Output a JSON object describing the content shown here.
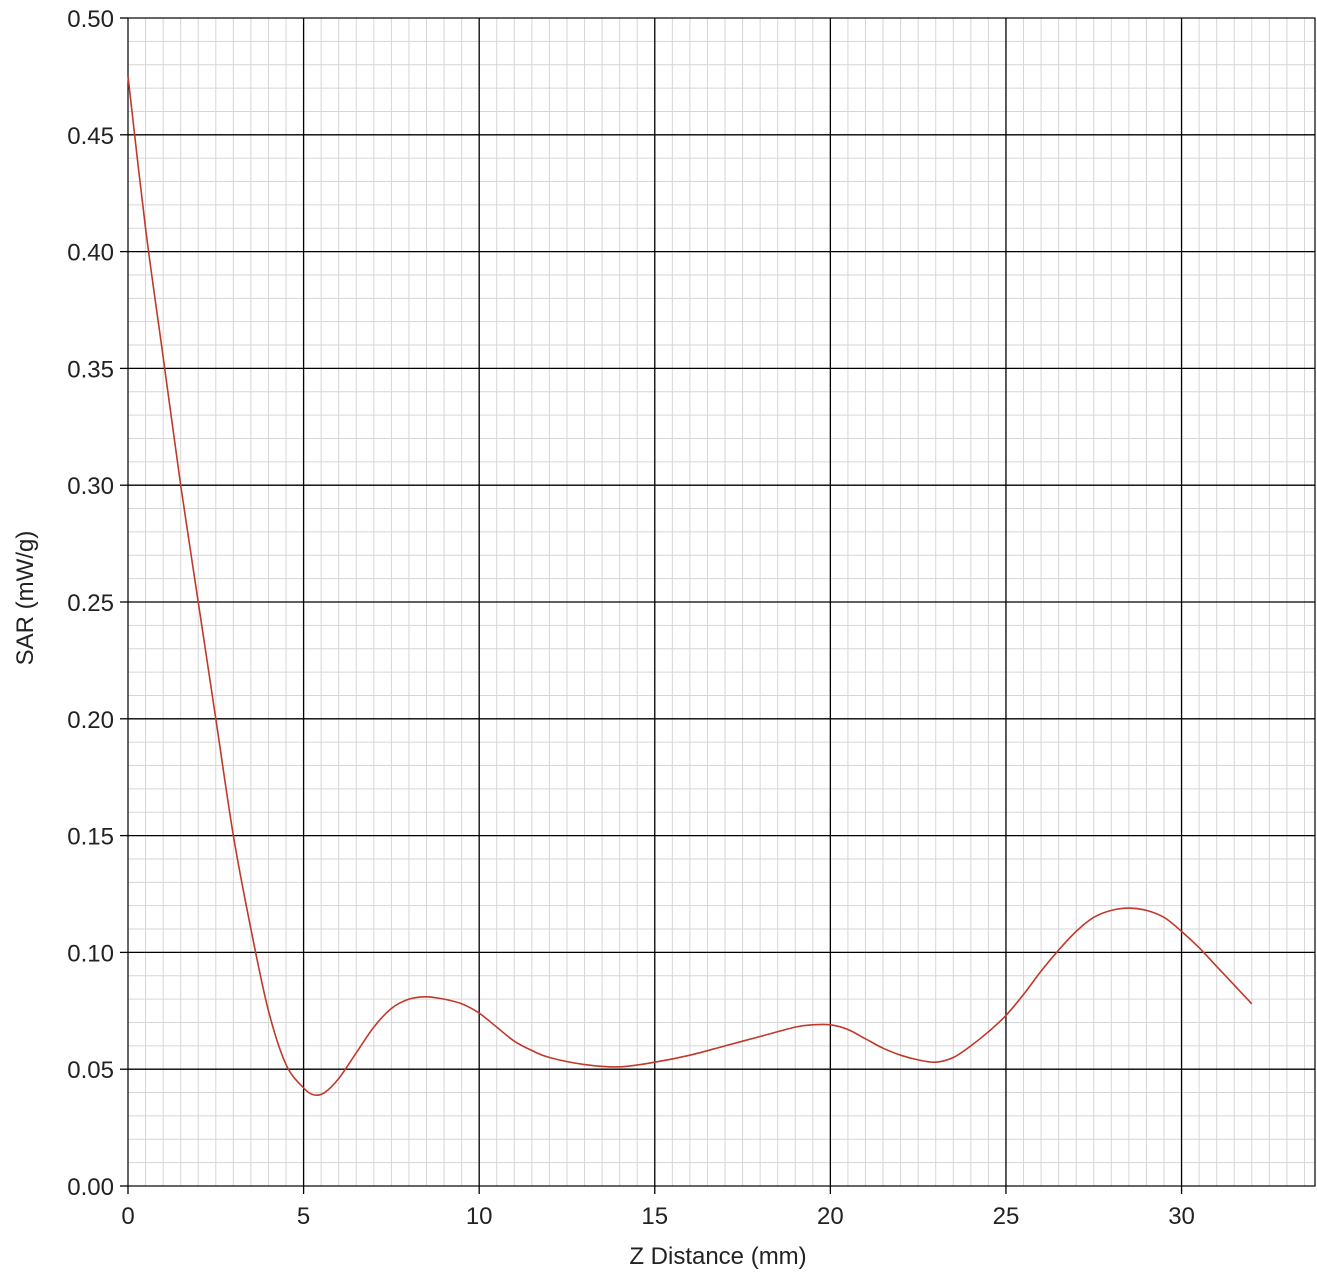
{
  "chart_data": {
    "type": "line",
    "title": "",
    "xlabel": "Z Distance (mm)",
    "ylabel": "SAR (mW/g)",
    "xlim": [
      0,
      33.8
    ],
    "ylim": [
      0,
      0.5
    ],
    "x_major_ticks": [
      0,
      5,
      10,
      15,
      20,
      25,
      30
    ],
    "x_tick_labels": [
      "0",
      "5",
      "10",
      "15",
      "20",
      "25",
      "30"
    ],
    "y_major_ticks": [
      0,
      0.05,
      0.1,
      0.15,
      0.2,
      0.25,
      0.3,
      0.35,
      0.4,
      0.45,
      0.5
    ],
    "y_tick_labels": [
      "0.00",
      "0.05",
      "0.10",
      "0.15",
      "0.20",
      "0.25",
      "0.30",
      "0.35",
      "0.40",
      "0.45",
      "0.50"
    ],
    "x_minor_step": 0.5,
    "y_minor_step": 0.01,
    "grid": true,
    "legend": "none",
    "series": [
      {
        "color": "#c0392b",
        "x": [
          0,
          0.5,
          1,
          1.5,
          2,
          2.5,
          3,
          3.5,
          4,
          4.5,
          5,
          5.3,
          5.6,
          6,
          6.5,
          7,
          7.5,
          8,
          8.5,
          9,
          9.5,
          10,
          10.5,
          11,
          11.5,
          12,
          13,
          14,
          15,
          16,
          17,
          18,
          19,
          19.5,
          20,
          20.5,
          21,
          21.5,
          22,
          22.5,
          23,
          23.5,
          24,
          24.5,
          25,
          25.5,
          26,
          26.5,
          27,
          27.5,
          28,
          28.5,
          29,
          29.5,
          30,
          30.5,
          31,
          31.5,
          32
        ],
        "y": [
          0.475,
          0.41,
          0.355,
          0.3,
          0.25,
          0.2,
          0.15,
          0.11,
          0.075,
          0.052,
          0.042,
          0.039,
          0.04,
          0.046,
          0.057,
          0.068,
          0.076,
          0.08,
          0.081,
          0.08,
          0.078,
          0.074,
          0.068,
          0.062,
          0.058,
          0.055,
          0.052,
          0.051,
          0.053,
          0.056,
          0.06,
          0.064,
          0.068,
          0.069,
          0.069,
          0.067,
          0.063,
          0.059,
          0.056,
          0.054,
          0.053,
          0.055,
          0.06,
          0.066,
          0.073,
          0.082,
          0.092,
          0.101,
          0.109,
          0.115,
          0.118,
          0.119,
          0.118,
          0.115,
          0.109,
          0.102,
          0.094,
          0.086,
          0.078
        ]
      }
    ]
  }
}
